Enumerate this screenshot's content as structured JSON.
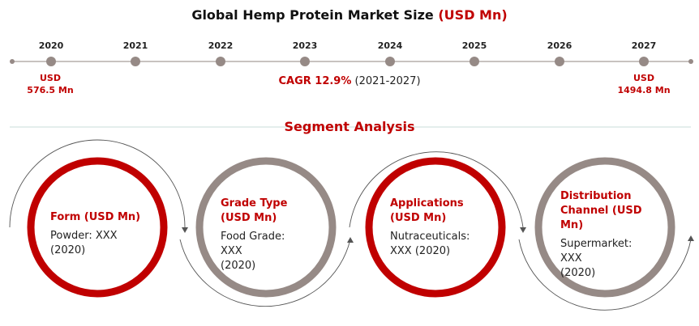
{
  "header": {
    "title_main": "Global Hemp Protein Market Size ",
    "title_unit": "(USD Mn)"
  },
  "timeline": {
    "years": [
      "2020",
      "2021",
      "2022",
      "2023",
      "2024",
      "2025",
      "2026",
      "2027"
    ],
    "start_value_line1": "USD",
    "start_value_line2": "576.5 Mn",
    "end_value_line1": "USD",
    "end_value_line2": "1494.8 Mn",
    "cagr_label": "CAGR 12.9%",
    "cagr_period": " (2021-2027)"
  },
  "segments_heading": "Segment Analysis",
  "segments": [
    {
      "title": "Form (USD Mn)",
      "value_line1": "Powder: XXX",
      "value_line2": "(2020)",
      "ring_color": "#c00000"
    },
    {
      "title": "Grade Type (USD Mn)",
      "value_line1": "Food Grade: XXX",
      "value_line2": "(2020)",
      "ring_color": "#968a86"
    },
    {
      "title": "Applications (USD Mn)",
      "value_line1": "Nutraceuticals: XXX (2020)",
      "value_line2": "",
      "ring_color": "#c00000"
    },
    {
      "title": "Distribution Channel (USD Mn)",
      "value_line1": "Supermarket: XXX",
      "value_line2": "(2020)",
      "ring_color": "#968a86"
    }
  ],
  "colors": {
    "accent": "#c00000",
    "gray": "#968a86"
  }
}
